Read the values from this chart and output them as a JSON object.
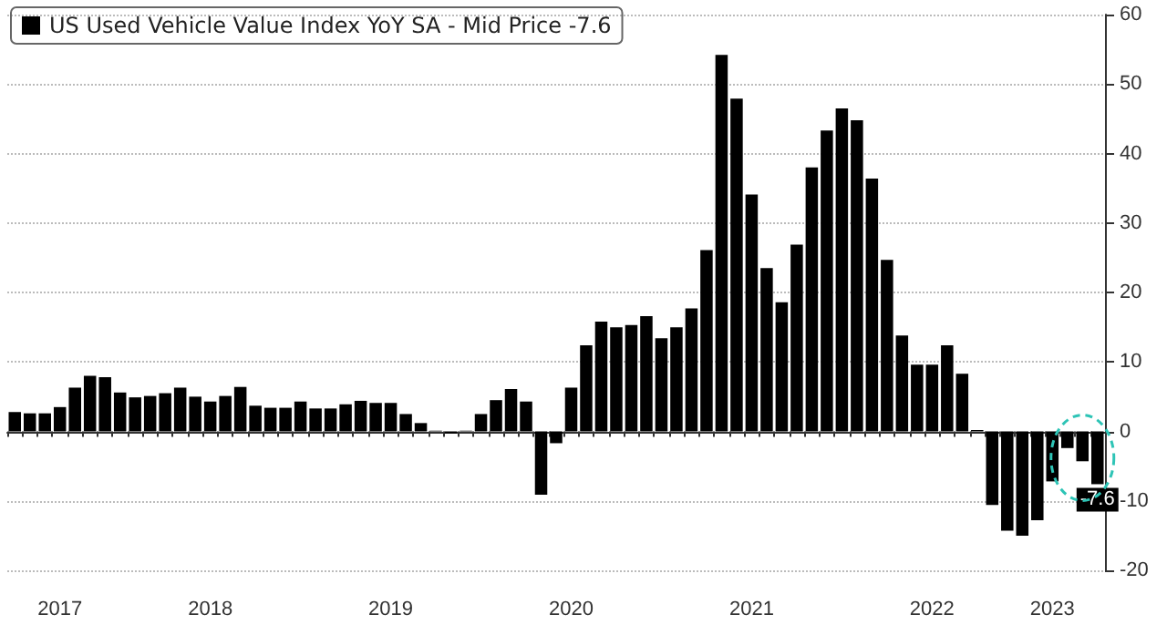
{
  "chart_data": {
    "type": "bar",
    "categories": [
      null,
      null,
      null,
      "2017",
      null,
      null,
      null,
      null,
      null,
      null,
      null,
      null,
      null,
      "2018",
      null,
      null,
      null,
      null,
      null,
      null,
      null,
      null,
      null,
      null,
      null,
      "2019",
      null,
      null,
      null,
      null,
      null,
      null,
      null,
      null,
      null,
      null,
      null,
      "2020",
      null,
      null,
      null,
      null,
      null,
      null,
      null,
      null,
      null,
      null,
      null,
      "2021",
      null,
      null,
      null,
      null,
      null,
      null,
      null,
      null,
      null,
      null,
      null,
      "2022",
      null,
      null,
      null,
      null,
      null,
      null,
      null,
      "2023",
      null,
      null,
      null
    ],
    "series": [
      {
        "name": "US Used Vehicle Value Index YoY SA - Mid Price -7.6",
        "color": "#000000",
        "values": [
          2.8,
          2.6,
          2.6,
          3.5,
          6.3,
          8.0,
          7.8,
          5.6,
          4.9,
          5.1,
          5.5,
          6.3,
          5.0,
          4.3,
          5.1,
          6.4,
          3.7,
          3.4,
          3.4,
          4.3,
          3.3,
          3.3,
          3.9,
          4.4,
          4.1,
          4.1,
          2.5,
          1.2,
          0.1,
          -0.3,
          0.1,
          2.5,
          4.5,
          6.1,
          4.3,
          -9.1,
          -1.7,
          6.3,
          12.4,
          15.8,
          15.0,
          15.3,
          16.6,
          13.4,
          15.0,
          17.7,
          26.1,
          54.2,
          47.9,
          34.1,
          23.5,
          18.6,
          26.9,
          38.0,
          43.3,
          46.5,
          44.8,
          36.4,
          24.7,
          13.8,
          9.6,
          9.6,
          12.4,
          8.3,
          0.2,
          -10.6,
          -14.3,
          -15.0,
          -12.8,
          -7.2,
          -2.4,
          -4.3,
          -7.6
        ],
        "value_labels": [
          null,
          null,
          null,
          null,
          null,
          null,
          null,
          null,
          null,
          null,
          null,
          null,
          null,
          null,
          null,
          null,
          null,
          null,
          null,
          null,
          null,
          null,
          null,
          null,
          null,
          null,
          null,
          null,
          null,
          null,
          null,
          null,
          null,
          null,
          null,
          null,
          null,
          null,
          null,
          null,
          null,
          null,
          null,
          null,
          null,
          null,
          null,
          null,
          null,
          null,
          null,
          null,
          null,
          null,
          null,
          null,
          null,
          null,
          null,
          null,
          null,
          null,
          null,
          null,
          null,
          null,
          null,
          null,
          null,
          null,
          null,
          null,
          "-7.6"
        ]
      }
    ],
    "ylim": [
      -20,
      60
    ],
    "yticks": [
      -20,
      -10,
      0,
      10,
      20,
      30,
      40,
      50,
      60
    ],
    "grid": "y",
    "legend": "top left"
  }
}
